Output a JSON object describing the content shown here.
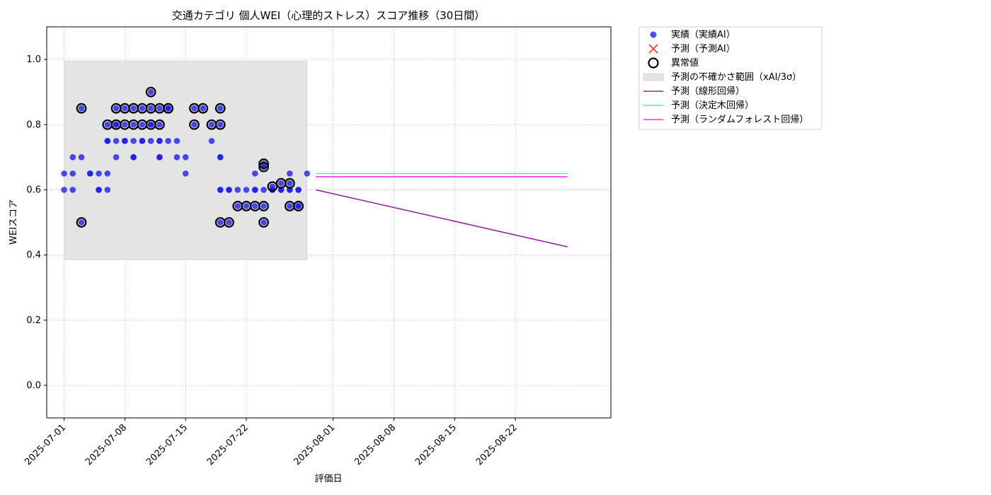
{
  "chart_data": {
    "type": "scatter",
    "title": "交通カテゴリ 個人WEI（心理的ストレス）スコア推移（30日間）",
    "xlabel": "評価日",
    "ylabel": "WEIスコア",
    "xlim": [
      "2025-06-29",
      "2025-09-02"
    ],
    "ylim": [
      -0.1,
      1.1
    ],
    "x_ticks": [
      "2025-07-01",
      "2025-07-08",
      "2025-07-15",
      "2025-07-22",
      "2025-08-01",
      "2025-08-08",
      "2025-08-15",
      "2025-08-22"
    ],
    "y_ticks": [
      0.0,
      0.2,
      0.4,
      0.6,
      0.8,
      1.0
    ],
    "grid": true,
    "legend_position": "outside-top-right",
    "uncertainty_band": {
      "label": "予測の不確かさ範囲（xAI/3σ）",
      "x_start": "2025-07-01",
      "x_end": "2025-07-29",
      "y_low": 0.385,
      "y_high": 0.995,
      "color": "#e4e4e4"
    },
    "actual": {
      "label": "実績（実績AI）",
      "color": "#1a1af0",
      "points": [
        [
          "2025-07-01",
          0.65
        ],
        [
          "2025-07-01",
          0.6
        ],
        [
          "2025-07-02",
          0.7
        ],
        [
          "2025-07-02",
          0.65
        ],
        [
          "2025-07-02",
          0.6
        ],
        [
          "2025-07-03",
          0.85
        ],
        [
          "2025-07-03",
          0.7
        ],
        [
          "2025-07-03",
          0.5
        ],
        [
          "2025-07-04",
          0.65
        ],
        [
          "2025-07-04",
          0.65
        ],
        [
          "2025-07-05",
          0.6
        ],
        [
          "2025-07-05",
          0.65
        ],
        [
          "2025-07-05",
          0.6
        ],
        [
          "2025-07-06",
          0.75
        ],
        [
          "2025-07-06",
          0.65
        ],
        [
          "2025-07-06",
          0.6
        ],
        [
          "2025-07-06",
          0.8
        ],
        [
          "2025-07-06",
          0.75
        ],
        [
          "2025-07-07",
          0.85
        ],
        [
          "2025-07-07",
          0.8
        ],
        [
          "2025-07-07",
          0.8
        ],
        [
          "2025-07-07",
          0.7
        ],
        [
          "2025-07-07",
          0.75
        ],
        [
          "2025-07-08",
          0.75
        ],
        [
          "2025-07-08",
          0.85
        ],
        [
          "2025-07-08",
          0.8
        ],
        [
          "2025-07-08",
          0.75
        ],
        [
          "2025-07-09",
          0.7
        ],
        [
          "2025-07-09",
          0.8
        ],
        [
          "2025-07-09",
          0.75
        ],
        [
          "2025-07-09",
          0.85
        ],
        [
          "2025-07-09",
          0.7
        ],
        [
          "2025-07-10",
          0.8
        ],
        [
          "2025-07-10",
          0.75
        ],
        [
          "2025-07-10",
          0.75
        ],
        [
          "2025-07-10",
          0.85
        ],
        [
          "2025-07-11",
          0.8
        ],
        [
          "2025-07-11",
          0.85
        ],
        [
          "2025-07-11",
          0.75
        ],
        [
          "2025-07-11",
          0.8
        ],
        [
          "2025-07-11",
          0.9
        ],
        [
          "2025-07-12",
          0.75
        ],
        [
          "2025-07-12",
          0.85
        ],
        [
          "2025-07-12",
          0.7
        ],
        [
          "2025-07-12",
          0.7
        ],
        [
          "2025-07-12",
          0.8
        ],
        [
          "2025-07-12",
          0.75
        ],
        [
          "2025-07-13",
          0.85
        ],
        [
          "2025-07-13",
          0.85
        ],
        [
          "2025-07-13",
          0.75
        ],
        [
          "2025-07-14",
          0.7
        ],
        [
          "2025-07-14",
          0.75
        ],
        [
          "2025-07-15",
          0.7
        ],
        [
          "2025-07-15",
          0.65
        ],
        [
          "2025-07-16",
          0.85
        ],
        [
          "2025-07-16",
          0.8
        ],
        [
          "2025-07-17",
          0.85
        ],
        [
          "2025-07-18",
          0.75
        ],
        [
          "2025-07-18",
          0.8
        ],
        [
          "2025-07-19",
          0.7
        ],
        [
          "2025-07-19",
          0.85
        ],
        [
          "2025-07-19",
          0.8
        ],
        [
          "2025-07-19",
          0.7
        ],
        [
          "2025-07-19",
          0.5
        ],
        [
          "2025-07-19",
          0.6
        ],
        [
          "2025-07-19",
          0.6
        ],
        [
          "2025-07-20",
          0.6
        ],
        [
          "2025-07-20",
          0.5
        ],
        [
          "2025-07-20",
          0.6
        ],
        [
          "2025-07-21",
          0.55
        ],
        [
          "2025-07-21",
          0.6
        ],
        [
          "2025-07-22",
          0.55
        ],
        [
          "2025-07-22",
          0.6
        ],
        [
          "2025-07-23",
          0.6
        ],
        [
          "2025-07-23",
          0.55
        ],
        [
          "2025-07-23",
          0.65
        ],
        [
          "2025-07-23",
          0.6
        ],
        [
          "2025-07-24",
          0.5
        ],
        [
          "2025-07-24",
          0.55
        ],
        [
          "2025-07-24",
          0.6
        ],
        [
          "2025-07-24",
          0.68
        ],
        [
          "2025-07-24",
          0.67
        ],
        [
          "2025-07-25",
          0.6
        ],
        [
          "2025-07-25",
          0.61
        ],
        [
          "2025-07-25",
          0.6
        ],
        [
          "2025-07-26",
          0.6
        ],
        [
          "2025-07-26",
          0.62
        ],
        [
          "2025-07-26",
          0.6
        ],
        [
          "2025-07-27",
          0.6
        ],
        [
          "2025-07-27",
          0.65
        ],
        [
          "2025-07-27",
          0.62
        ],
        [
          "2025-07-27",
          0.55
        ],
        [
          "2025-07-27",
          0.6
        ],
        [
          "2025-07-28",
          0.6
        ],
        [
          "2025-07-28",
          0.55
        ],
        [
          "2025-07-28",
          0.55
        ],
        [
          "2025-07-28",
          0.6
        ],
        [
          "2025-07-29",
          0.65
        ]
      ]
    },
    "predicted": {
      "label": "予測（予測AI）",
      "color": "#ff3030",
      "points": []
    },
    "anomalies": {
      "label": "異常値",
      "color": "#000000",
      "points": [
        [
          "2025-07-03",
          0.85
        ],
        [
          "2025-07-03",
          0.5
        ],
        [
          "2025-07-06",
          0.8
        ],
        [
          "2025-07-07",
          0.85
        ],
        [
          "2025-07-07",
          0.8
        ],
        [
          "2025-07-07",
          0.8
        ],
        [
          "2025-07-08",
          0.85
        ],
        [
          "2025-07-08",
          0.8
        ],
        [
          "2025-07-09",
          0.8
        ],
        [
          "2025-07-09",
          0.85
        ],
        [
          "2025-07-10",
          0.8
        ],
        [
          "2025-07-10",
          0.85
        ],
        [
          "2025-07-11",
          0.8
        ],
        [
          "2025-07-11",
          0.85
        ],
        [
          "2025-07-11",
          0.9
        ],
        [
          "2025-07-12",
          0.85
        ],
        [
          "2025-07-12",
          0.8
        ],
        [
          "2025-07-13",
          0.85
        ],
        [
          "2025-07-13",
          0.85
        ],
        [
          "2025-07-16",
          0.85
        ],
        [
          "2025-07-16",
          0.8
        ],
        [
          "2025-07-17",
          0.85
        ],
        [
          "2025-07-18",
          0.8
        ],
        [
          "2025-07-19",
          0.85
        ],
        [
          "2025-07-19",
          0.8
        ],
        [
          "2025-07-19",
          0.5
        ],
        [
          "2025-07-20",
          0.5
        ],
        [
          "2025-07-21",
          0.55
        ],
        [
          "2025-07-22",
          0.55
        ],
        [
          "2025-07-23",
          0.55
        ],
        [
          "2025-07-24",
          0.5
        ],
        [
          "2025-07-24",
          0.55
        ],
        [
          "2025-07-24",
          0.68
        ],
        [
          "2025-07-24",
          0.67
        ],
        [
          "2025-07-25",
          0.61
        ],
        [
          "2025-07-26",
          0.62
        ],
        [
          "2025-07-27",
          0.62
        ],
        [
          "2025-07-27",
          0.55
        ],
        [
          "2025-07-28",
          0.55
        ],
        [
          "2025-07-28",
          0.55
        ]
      ]
    },
    "series": [
      {
        "name": "予測（線形回帰）",
        "color": "#9b27a8",
        "x": [
          "2025-07-30",
          "2025-08-28"
        ],
        "values": [
          0.6,
          0.425
        ]
      },
      {
        "name": "予測（決定木回帰）",
        "color": "#40e8ff",
        "x": [
          "2025-07-30",
          "2025-08-28"
        ],
        "values": [
          0.65,
          0.65
        ]
      },
      {
        "name": "予測（ランダムフォレスト回帰）",
        "color": "#ff30ff",
        "x": [
          "2025-07-30",
          "2025-08-28"
        ],
        "values": [
          0.64,
          0.64
        ]
      }
    ]
  }
}
